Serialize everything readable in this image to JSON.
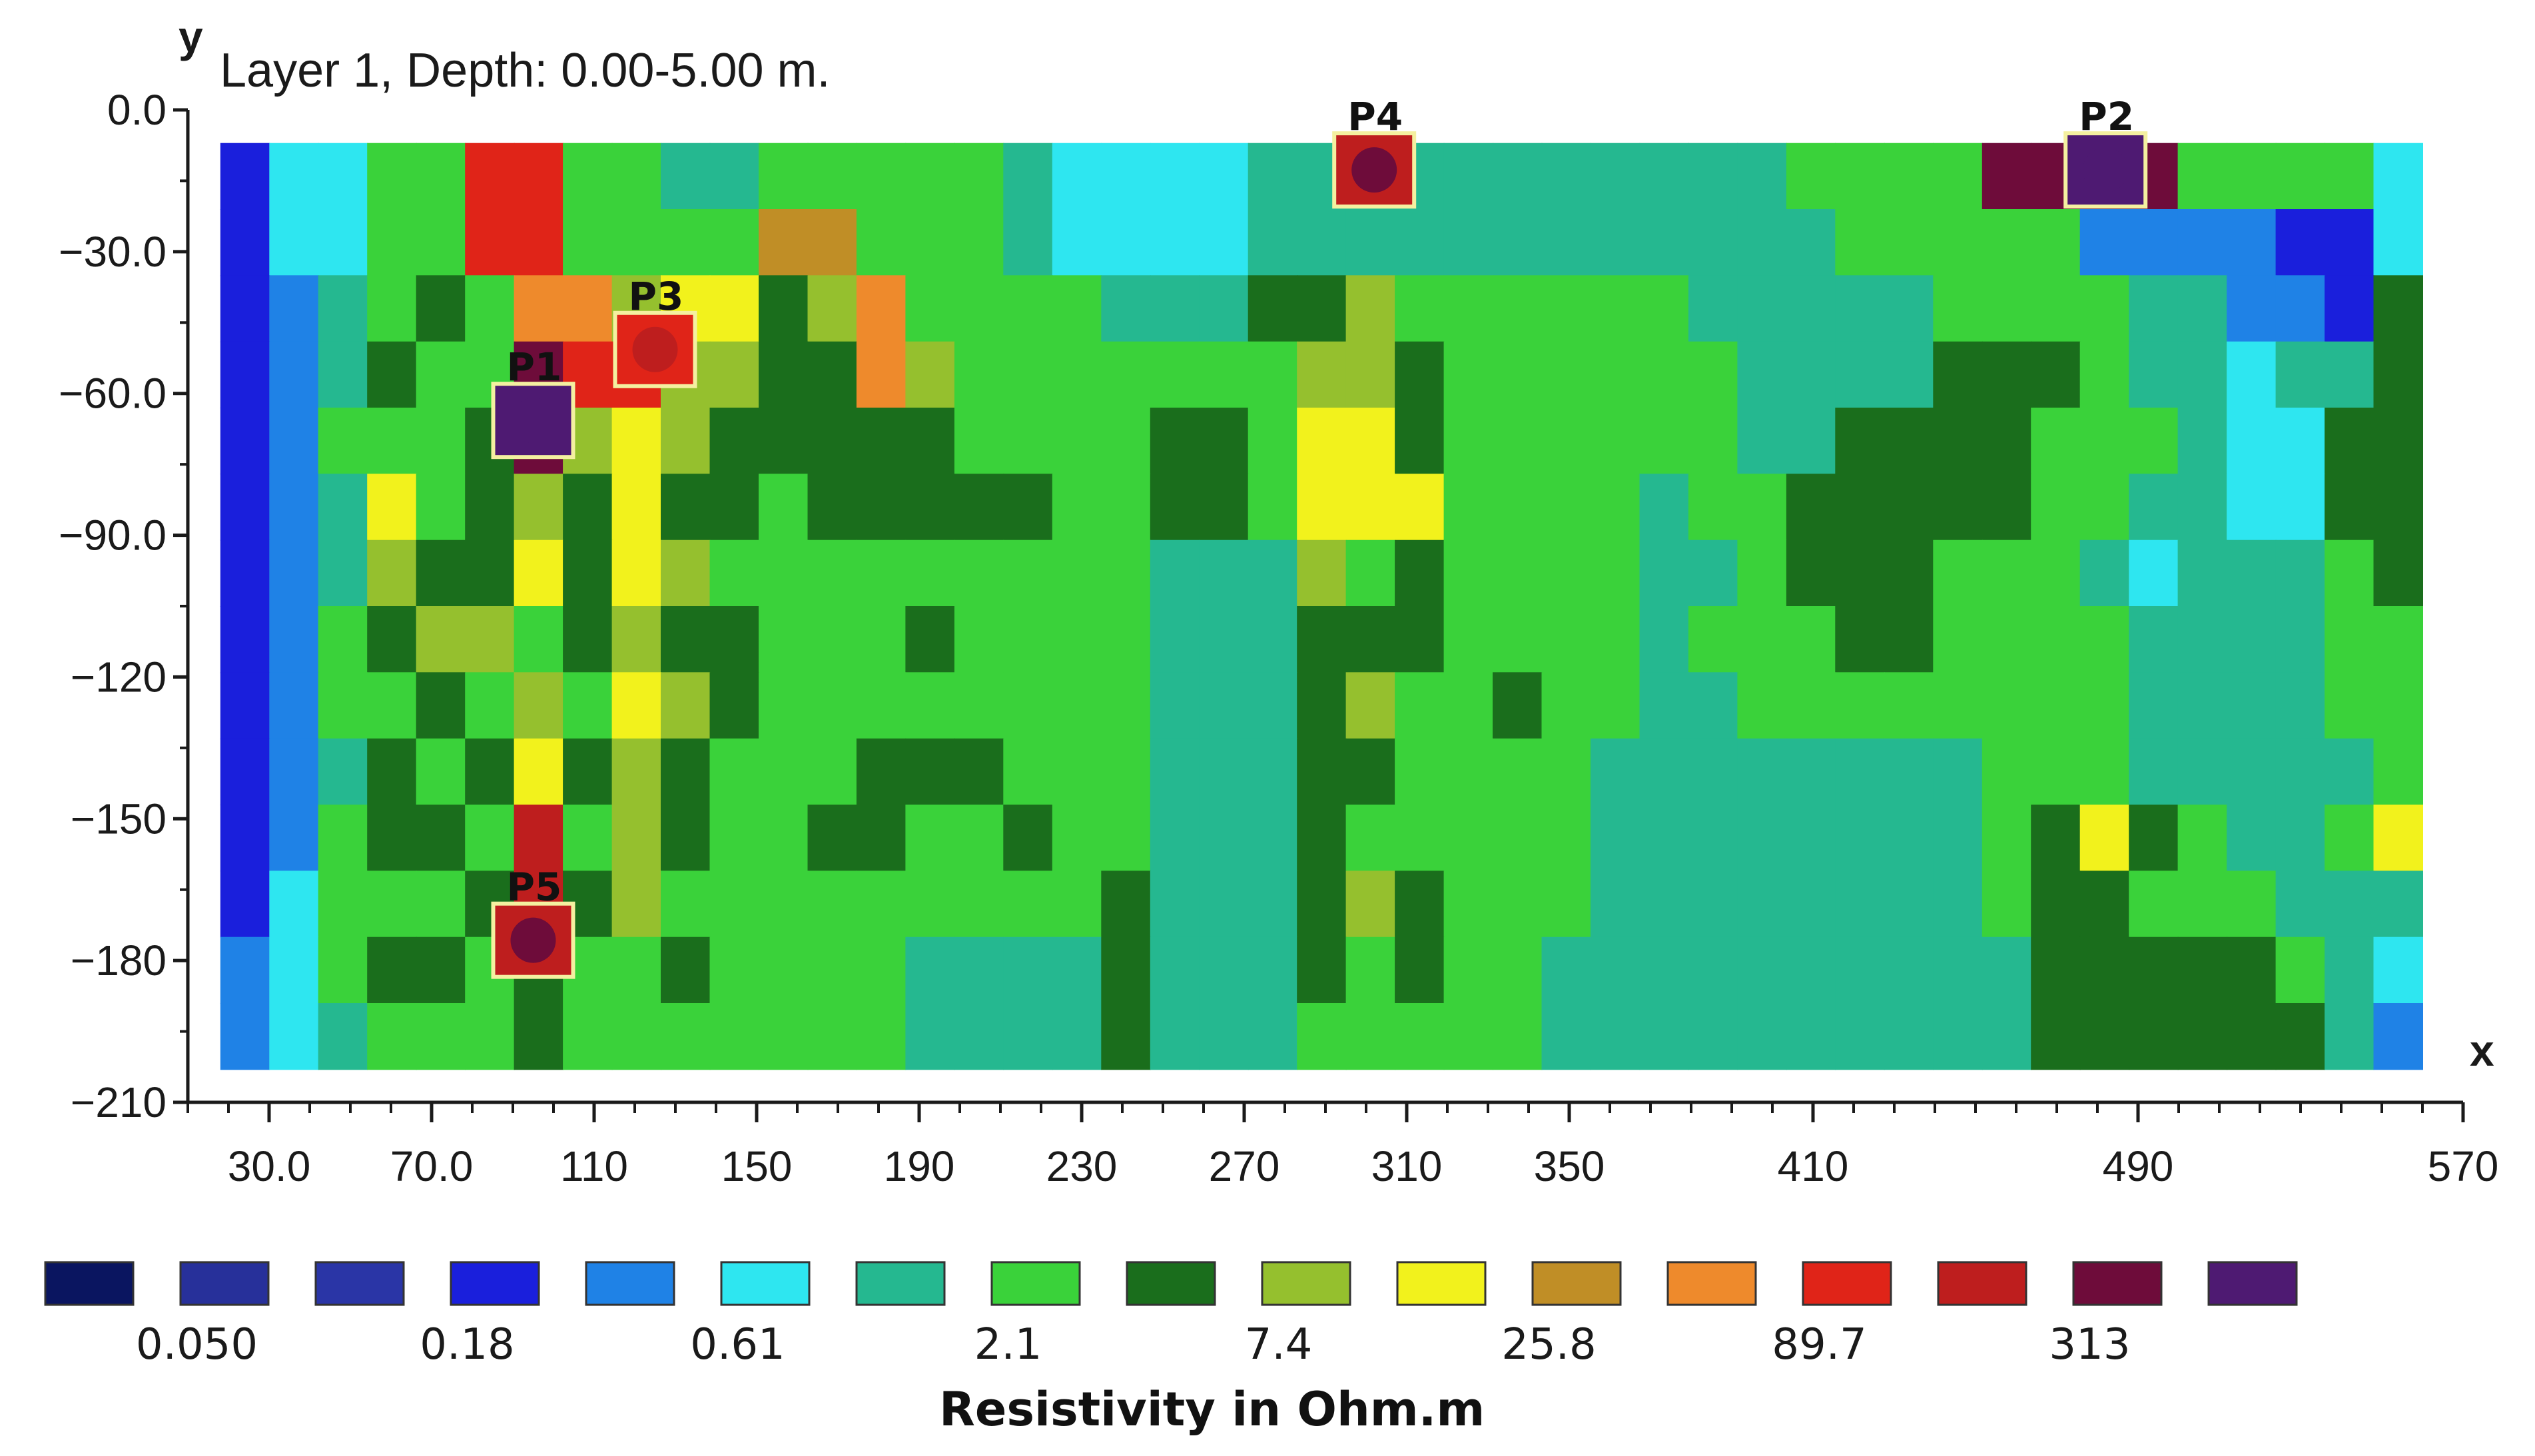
{
  "chart_data": {
    "type": "heatmap",
    "title": "Layer 1, Depth: 0.00-5.00 m.",
    "xlabel": "x",
    "ylabel": "y",
    "xlim": [
      10,
      570
    ],
    "ylim": [
      -210,
      0
    ],
    "x_ticks": [
      "30.0",
      "70.0",
      "110",
      "150",
      "190",
      "230",
      "270",
      "310",
      "350",
      "410",
      "490",
      "570"
    ],
    "x_tick_values": [
      30,
      70,
      110,
      150,
      190,
      230,
      270,
      310,
      350,
      410,
      490,
      570
    ],
    "y_ticks": [
      "0.0",
      "−30.0",
      "−60.0",
      "−90.0",
      "−120",
      "−150",
      "−180",
      "−210"
    ],
    "y_tick_values": [
      0,
      -30,
      -60,
      -90,
      -120,
      -150,
      -180,
      -210
    ],
    "grid": false,
    "legend_position": "bottom",
    "colorbar": {
      "title": "Resistivity in Ohm.m",
      "colors": [
        "#0a1560",
        "#27309a",
        "#2a35a6",
        "#1a1fdc",
        "#1f82e6",
        "#2ee6f0",
        "#25b890",
        "#3ad23a",
        "#1a6e1c",
        "#95c02e",
        "#f2f21c",
        "#c08e26",
        "#ee8a2c",
        "#e02418",
        "#be1e1e",
        "#6e0c3a",
        "#4e1a72"
      ],
      "labels": [
        "0.050",
        "0.18",
        "0.61",
        "2.1",
        "7.4",
        "25.8",
        "89.7",
        "313"
      ]
    },
    "anomalies": [
      {
        "label": "P1",
        "x": 95,
        "y": -65,
        "level": 16
      },
      {
        "label": "P2",
        "x": 482,
        "y": -12,
        "level": 16
      },
      {
        "label": "P3",
        "x": 125,
        "y": -50,
        "level": 13
      },
      {
        "label": "P4",
        "x": 302,
        "y": -12,
        "level": 14
      },
      {
        "label": "P5",
        "x": 95,
        "y": -175,
        "level": 14
      }
    ],
    "heatmap_extent": {
      "x": [
        18,
        560
      ],
      "y": [
        -203,
        -7
      ]
    },
    "heatmap_levels": [
      [
        3,
        5,
        5,
        7,
        7,
        13,
        13,
        7,
        7,
        6,
        6,
        7,
        7,
        7,
        7,
        7,
        6,
        5,
        5,
        5,
        5,
        6,
        6,
        6,
        6,
        6,
        6,
        6,
        6,
        6,
        6,
        6,
        7,
        7,
        7,
        7,
        15,
        15,
        15,
        15,
        7,
        7,
        7,
        7,
        5
      ],
      [
        3,
        5,
        5,
        7,
        7,
        13,
        13,
        7,
        7,
        7,
        7,
        11,
        11,
        7,
        7,
        7,
        6,
        5,
        5,
        5,
        5,
        6,
        6,
        6,
        6,
        6,
        6,
        6,
        6,
        6,
        6,
        6,
        6,
        7,
        7,
        7,
        7,
        7,
        4,
        4,
        4,
        4,
        3,
        3,
        5
      ],
      [
        3,
        4,
        6,
        7,
        8,
        7,
        12,
        12,
        9,
        10,
        10,
        8,
        9,
        12,
        7,
        7,
        7,
        7,
        6,
        6,
        6,
        8,
        8,
        9,
        7,
        7,
        7,
        7,
        7,
        7,
        6,
        6,
        6,
        6,
        6,
        7,
        7,
        7,
        7,
        6,
        6,
        4,
        4,
        3,
        8
      ],
      [
        3,
        4,
        6,
        8,
        7,
        7,
        15,
        13,
        13,
        9,
        9,
        8,
        8,
        12,
        9,
        7,
        7,
        7,
        7,
        7,
        7,
        7,
        9,
        9,
        8,
        7,
        7,
        7,
        7,
        7,
        7,
        6,
        6,
        6,
        6,
        8,
        8,
        8,
        7,
        6,
        6,
        5,
        6,
        6,
        8
      ],
      [
        3,
        4,
        7,
        7,
        7,
        8,
        15,
        9,
        10,
        9,
        8,
        8,
        8,
        8,
        8,
        7,
        7,
        7,
        7,
        8,
        8,
        7,
        10,
        10,
        8,
        7,
        7,
        7,
        7,
        7,
        7,
        6,
        6,
        8,
        8,
        8,
        8,
        7,
        7,
        7,
        6,
        5,
        5,
        8,
        8
      ],
      [
        3,
        4,
        6,
        10,
        7,
        8,
        9,
        8,
        10,
        8,
        8,
        7,
        8,
        8,
        8,
        8,
        8,
        7,
        7,
        8,
        8,
        7,
        10,
        10,
        10,
        7,
        7,
        7,
        7,
        6,
        7,
        7,
        8,
        8,
        8,
        8,
        8,
        7,
        7,
        6,
        6,
        5,
        5,
        8,
        8
      ],
      [
        3,
        4,
        6,
        9,
        8,
        8,
        10,
        8,
        10,
        9,
        7,
        7,
        7,
        7,
        7,
        7,
        7,
        7,
        7,
        6,
        6,
        6,
        9,
        7,
        8,
        7,
        7,
        7,
        7,
        6,
        6,
        7,
        8,
        8,
        8,
        7,
        7,
        7,
        6,
        5,
        6,
        6,
        6,
        7,
        8
      ],
      [
        3,
        4,
        7,
        8,
        9,
        9,
        7,
        8,
        9,
        8,
        8,
        7,
        7,
        7,
        8,
        7,
        7,
        7,
        7,
        6,
        6,
        6,
        8,
        8,
        8,
        7,
        7,
        7,
        7,
        6,
        7,
        7,
        7,
        8,
        8,
        7,
        7,
        7,
        7,
        6,
        6,
        6,
        6,
        7,
        7
      ],
      [
        3,
        4,
        7,
        7,
        8,
        7,
        9,
        7,
        10,
        9,
        8,
        7,
        7,
        7,
        7,
        7,
        7,
        7,
        7,
        6,
        6,
        6,
        8,
        9,
        7,
        7,
        8,
        7,
        7,
        6,
        6,
        7,
        7,
        7,
        7,
        7,
        7,
        7,
        7,
        6,
        6,
        6,
        6,
        7,
        7
      ],
      [
        3,
        4,
        6,
        8,
        7,
        8,
        10,
        8,
        9,
        8,
        7,
        7,
        7,
        8,
        8,
        8,
        7,
        7,
        7,
        6,
        6,
        6,
        8,
        8,
        7,
        7,
        7,
        7,
        6,
        6,
        6,
        6,
        6,
        6,
        6,
        6,
        7,
        7,
        7,
        6,
        6,
        6,
        6,
        6,
        7
      ],
      [
        3,
        4,
        7,
        8,
        8,
        7,
        14,
        7,
        9,
        8,
        7,
        7,
        8,
        8,
        7,
        7,
        8,
        7,
        7,
        6,
        6,
        6,
        8,
        7,
        7,
        7,
        7,
        7,
        6,
        6,
        6,
        6,
        6,
        6,
        6,
        6,
        7,
        8,
        10,
        8,
        7,
        6,
        6,
        7,
        10
      ],
      [
        3,
        5,
        7,
        7,
        7,
        8,
        14,
        8,
        9,
        7,
        7,
        7,
        7,
        7,
        7,
        7,
        7,
        7,
        8,
        6,
        6,
        6,
        8,
        9,
        8,
        7,
        7,
        7,
        6,
        6,
        6,
        6,
        6,
        6,
        6,
        6,
        7,
        8,
        8,
        7,
        7,
        7,
        6,
        6,
        6
      ],
      [
        4,
        5,
        7,
        8,
        8,
        7,
        8,
        7,
        7,
        8,
        7,
        7,
        7,
        7,
        6,
        6,
        6,
        6,
        8,
        6,
        6,
        6,
        8,
        7,
        8,
        7,
        7,
        6,
        6,
        6,
        6,
        6,
        6,
        6,
        6,
        6,
        6,
        8,
        8,
        8,
        8,
        8,
        7,
        6,
        5
      ],
      [
        4,
        5,
        6,
        7,
        7,
        7,
        8,
        7,
        7,
        7,
        7,
        7,
        7,
        7,
        6,
        6,
        6,
        6,
        8,
        6,
        6,
        6,
        7,
        7,
        7,
        7,
        7,
        6,
        6,
        6,
        6,
        6,
        6,
        6,
        6,
        6,
        6,
        8,
        8,
        8,
        8,
        8,
        8,
        6,
        4
      ]
    ]
  }
}
